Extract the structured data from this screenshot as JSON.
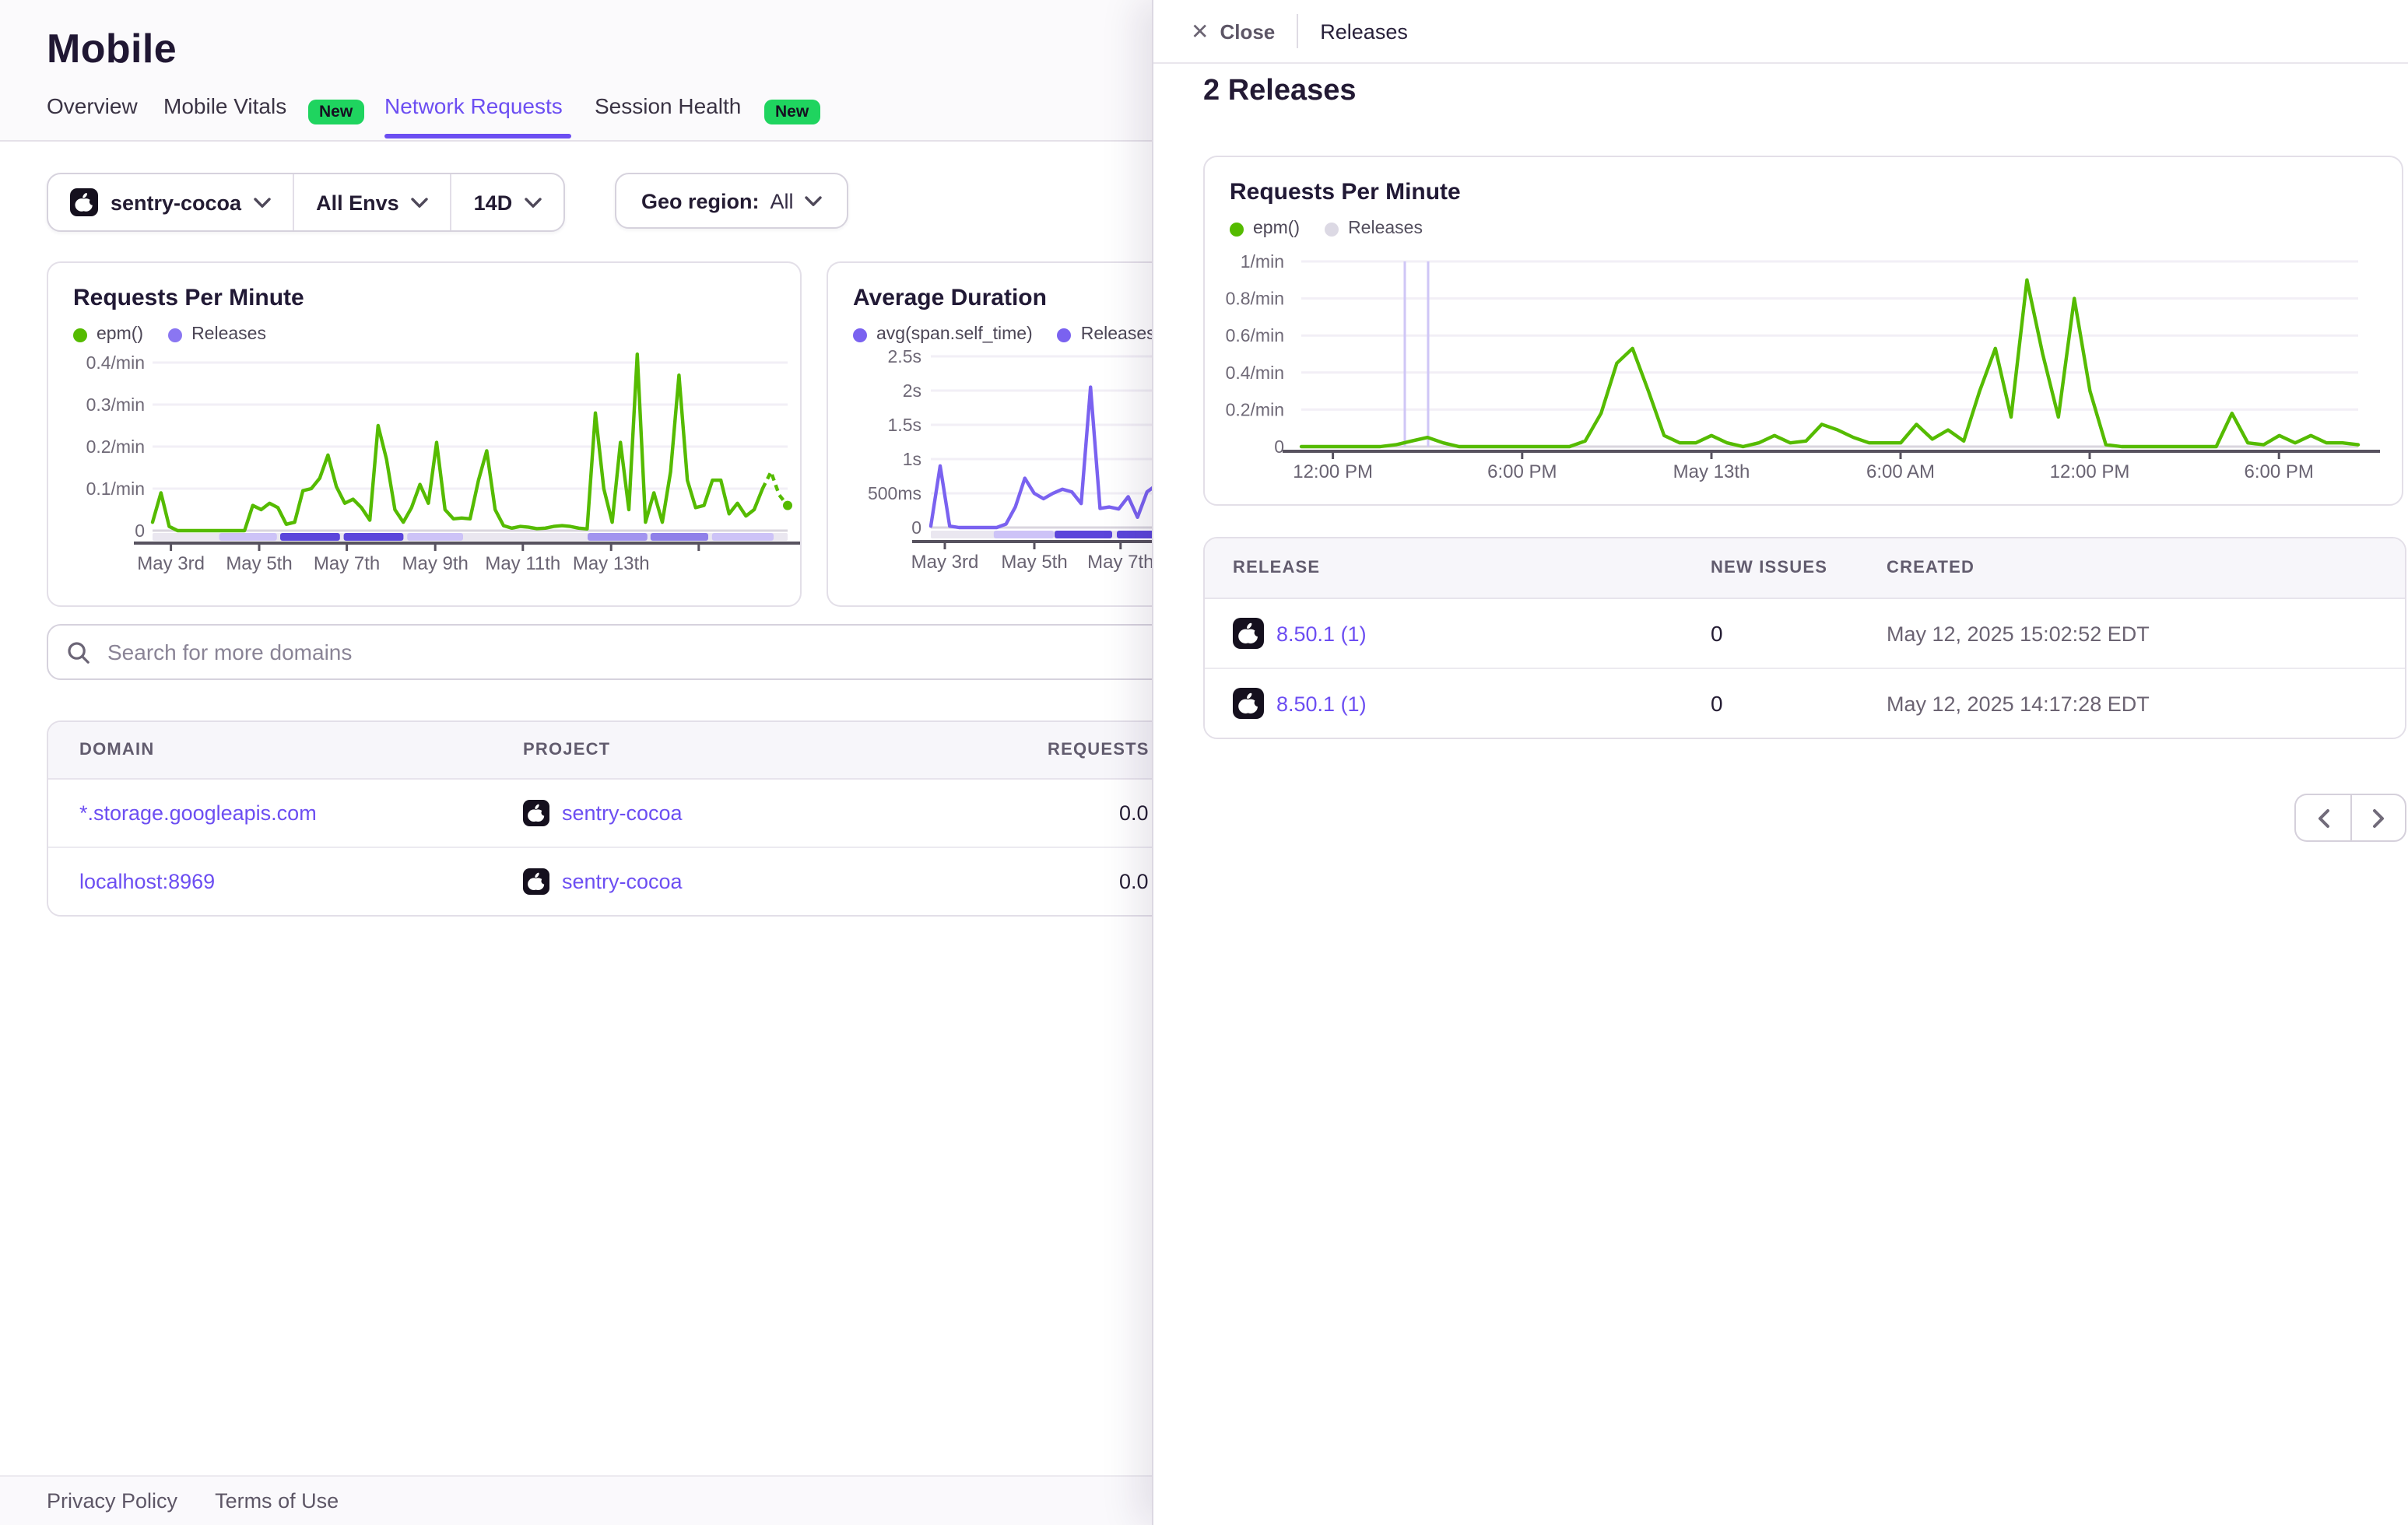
{
  "colors": {
    "accent_purple": "#6c4ef2",
    "epm_green": "#55bb00",
    "duration_purple": "#7a62f0",
    "badge_green": "#1fd45f",
    "release_band_dark": "#5b45db",
    "release_band_light": "#cdc3f7"
  },
  "header": {
    "title": "Mobile",
    "tabs": [
      {
        "label": "Overview"
      },
      {
        "label": "Mobile Vitals",
        "badge": "New"
      },
      {
        "label": "Network Requests",
        "active": true
      },
      {
        "label": "Session Health",
        "badge": "New"
      }
    ]
  },
  "filters": {
    "project": "sentry-cocoa",
    "env": "All Envs",
    "period": "14D",
    "geo_label": "Geo region:",
    "geo_value": "All"
  },
  "search": {
    "placeholder": "Search for more domains"
  },
  "domain_table": {
    "headers": [
      "DOMAIN",
      "PROJECT",
      "REQUESTS P"
    ],
    "rows": [
      {
        "domain": "*.storage.googleapis.com",
        "project": "sentry-cocoa",
        "requests": "0.0"
      },
      {
        "domain": "localhost:8969",
        "project": "sentry-cocoa",
        "requests": "0.0"
      }
    ]
  },
  "footer": {
    "links": [
      "Privacy Policy",
      "Terms of Use"
    ]
  },
  "panel": {
    "close_icon": "✕",
    "close_label": "Close",
    "title": "Releases",
    "heading": "2 Releases",
    "table": {
      "headers": [
        "RELEASE",
        "NEW ISSUES",
        "CREATED"
      ],
      "rows": [
        {
          "release": "8.50.1 (1)",
          "new_issues": "0",
          "created": "May 12, 2025 15:02:52 EDT"
        },
        {
          "release": "8.50.1 (1)",
          "new_issues": "0",
          "created": "May 12, 2025 14:17:28 EDT"
        }
      ]
    }
  },
  "chart_data": [
    {
      "type": "line",
      "title": "Requests Per Minute",
      "legend": [
        {
          "label": "epm()",
          "color": "#55bb00"
        },
        {
          "label": "Releases",
          "color": "#8a76f2"
        }
      ],
      "ylabel_unit": "/min",
      "yticks": [
        [
          "0.4/min",
          0.4
        ],
        [
          "0.3/min",
          0.3
        ],
        [
          "0.2/min",
          0.2
        ],
        [
          "0.1/min",
          0.1
        ],
        [
          "0",
          0
        ]
      ],
      "x_ticks": [
        [
          "May 3rd",
          0.029
        ],
        [
          "May 5th",
          0.168
        ],
        [
          "May 7th",
          0.306
        ],
        [
          "May 9th",
          0.445
        ],
        [
          "May 11th",
          0.583
        ],
        [
          "May 13th",
          0.722
        ],
        [
          "",
          0.86
        ]
      ],
      "x_range": "May 2 – May 15 (14D)",
      "color": "#55bb00",
      "dashed_tail": true,
      "end_dot": true,
      "values": [
        0.02,
        0.09,
        0.01,
        0,
        0,
        0,
        0,
        0,
        0,
        0,
        0,
        0,
        0.06,
        0.05,
        0.065,
        0.055,
        0.015,
        0.02,
        0.095,
        0.1,
        0.125,
        0.18,
        0.105,
        0.065,
        0.075,
        0.055,
        0.025,
        0.25,
        0.17,
        0.05,
        0.02,
        0.055,
        0.11,
        0.065,
        0.21,
        0.05,
        0.028,
        0.03,
        0.028,
        0.12,
        0.19,
        0.05,
        0.012,
        0.006,
        0.01,
        0.008,
        0.005,
        0.006,
        0.01,
        0.012,
        0.01,
        0.006,
        0.004,
        0.28,
        0.1,
        0.02,
        0.21,
        0.05,
        0.42,
        0.02,
        0.09,
        0.02,
        0.14,
        0.37,
        0.12,
        0.055,
        0.06,
        0.12,
        0.12,
        0.04,
        0.065,
        0.035,
        0.05,
        0.1,
        0.14,
        0.085,
        0.06
      ],
      "release_bands": [
        [
          0.105,
          0.196,
          "light"
        ],
        [
          0.201,
          0.295,
          "dark"
        ],
        [
          0.301,
          0.395,
          "dark"
        ],
        [
          0.401,
          0.489,
          "light"
        ],
        [
          0.685,
          0.779,
          "med"
        ],
        [
          0.784,
          0.875,
          "med2"
        ],
        [
          0.881,
          0.978,
          "light"
        ]
      ]
    },
    {
      "type": "line",
      "title": "Average Duration",
      "legend": [
        {
          "label": "avg(span.self_time)",
          "color": "#7a62f0"
        },
        {
          "label": "Releases",
          "color": "#7a62f0"
        }
      ],
      "ylabel_unit": "s",
      "yticks": [
        [
          "2.5s",
          2.5
        ],
        [
          "2s",
          2
        ],
        [
          "1.5s",
          1.5
        ],
        [
          "1s",
          1
        ],
        [
          "500ms",
          0.5
        ],
        [
          "0",
          0
        ]
      ],
      "x_ticks": [
        [
          "May 3rd",
          0.055
        ],
        [
          "May 5th",
          0.408
        ],
        [
          "May 7th",
          0.748
        ]
      ],
      "x_range": "May 2 – May 8 (clipped by panel)",
      "color": "#7a62f0",
      "values": [
        0.02,
        0.9,
        0.02,
        0,
        0,
        0,
        0,
        0,
        0.05,
        0.3,
        0.72,
        0.5,
        0.42,
        0.5,
        0.56,
        0.52,
        0.35,
        2.05,
        0.28,
        0.3,
        0.27,
        0.45,
        0.15,
        0.52,
        0.62,
        0.45,
        0.38,
        0.42
      ],
      "release_bands": [
        [
          0.248,
          0.485,
          "light"
        ],
        [
          0.488,
          0.715,
          "dark"
        ],
        [
          0.733,
          1.0,
          "dark"
        ]
      ]
    },
    {
      "type": "line",
      "title": "Requests Per Minute",
      "legend": [
        {
          "label": "epm()",
          "color": "#55bb00"
        },
        {
          "label": "Releases",
          "color": "#dcd9e4",
          "muted": true
        }
      ],
      "ylabel_unit": "/min",
      "yticks": [
        [
          "1/min",
          1
        ],
        [
          "0.8/min",
          0.8
        ],
        [
          "0.6/min",
          0.6
        ],
        [
          "0.4/min",
          0.4
        ],
        [
          "0.2/min",
          0.2
        ],
        [
          "0",
          0
        ]
      ],
      "x_ticks": [
        [
          "12:00 PM",
          0.0299
        ],
        [
          "6:00 PM",
          0.209
        ],
        [
          "May 13th",
          0.388
        ],
        [
          "6:00 AM",
          0.567
        ],
        [
          "12:00 PM",
          0.746
        ],
        [
          "6:00 PM",
          0.925
        ]
      ],
      "x_range": "May 12 11:00 AM – May 13 8:30 PM",
      "color": "#55bb00",
      "release_lines": [
        0.098,
        0.12
      ],
      "values": [
        0,
        0,
        0,
        0,
        0,
        0,
        0.01,
        0.03,
        0.05,
        0.02,
        0,
        0,
        0,
        0,
        0,
        0,
        0,
        0,
        0.03,
        0.18,
        0.45,
        0.53,
        0.3,
        0.06,
        0.02,
        0.02,
        0.06,
        0.02,
        0,
        0.02,
        0.06,
        0.02,
        0.03,
        0.12,
        0.09,
        0.05,
        0.02,
        0.02,
        0.02,
        0.12,
        0.04,
        0.09,
        0.03,
        0.3,
        0.53,
        0.16,
        0.9,
        0.5,
        0.16,
        0.8,
        0.3,
        0.01,
        0,
        0,
        0,
        0,
        0,
        0,
        0,
        0.18,
        0.02,
        0.01,
        0.06,
        0.02,
        0.06,
        0.02,
        0.02,
        0.01
      ]
    }
  ]
}
